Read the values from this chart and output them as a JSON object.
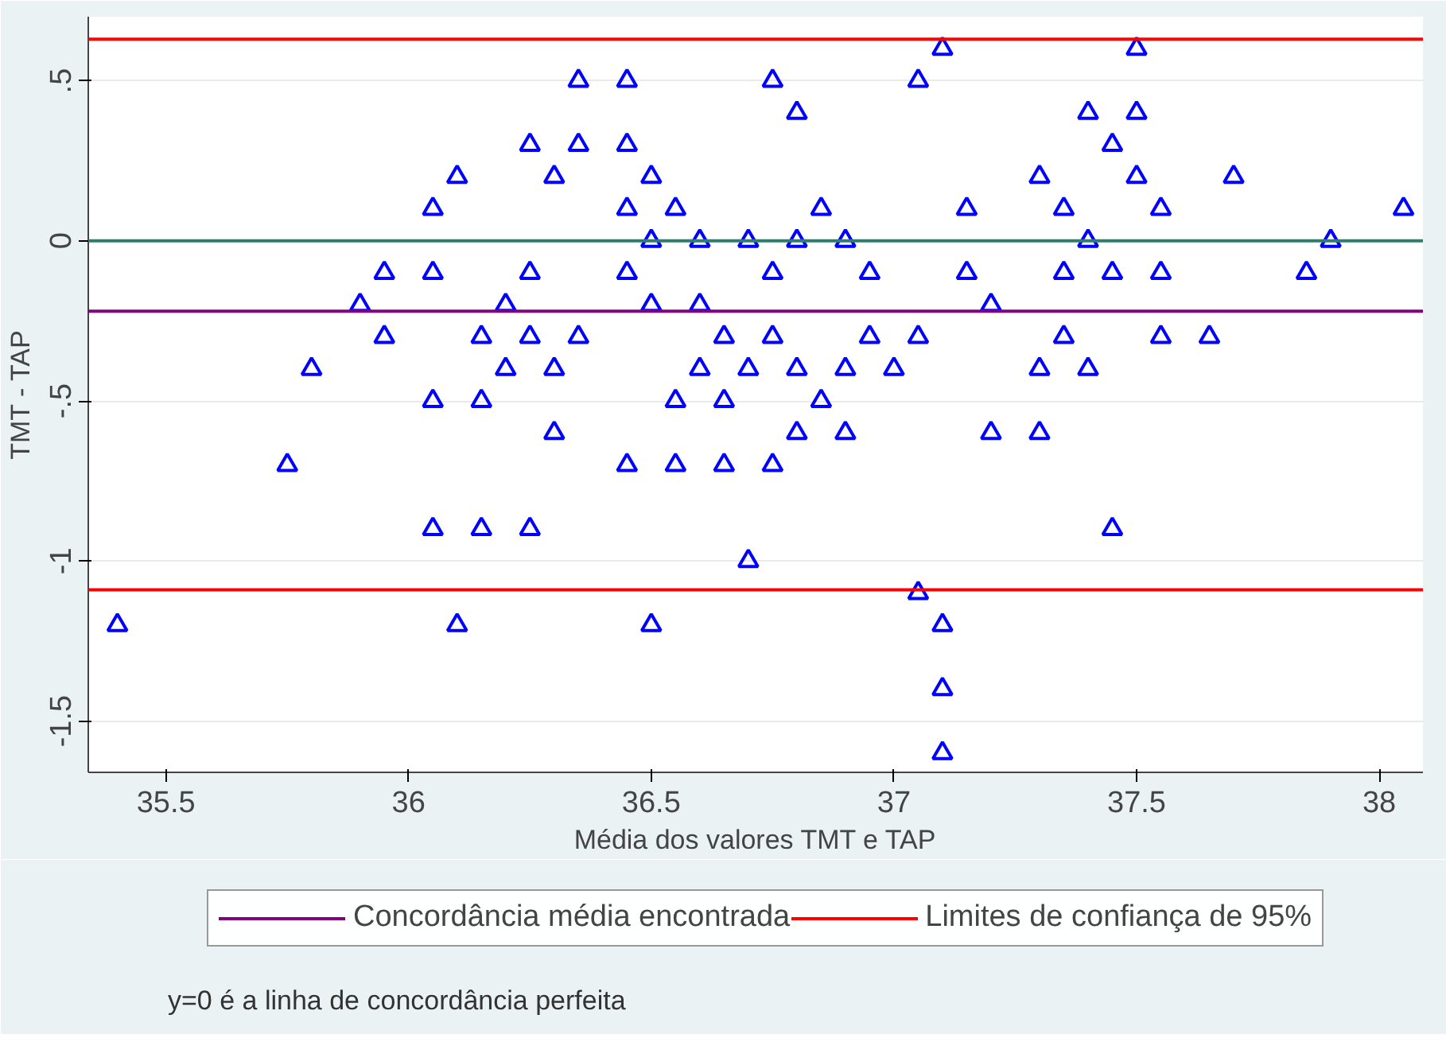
{
  "chart_data": {
    "type": "scatter",
    "xlabel": "Média dos valores TMT e TAP",
    "ylabel": "TMT - TAP",
    "series": [
      {
        "color": "#0000ff",
        "x": [
          37.1,
          37.5,
          36.35,
          36.45,
          36.75,
          37.05,
          36.8,
          37.4,
          37.5,
          36.25,
          36.35,
          36.45,
          37.45,
          36.1,
          36.3,
          36.5,
          37.3,
          37.5,
          37.7,
          36.05,
          36.45,
          36.55,
          36.85,
          37.15,
          37.35,
          37.55,
          38.05,
          36.5,
          36.6,
          36.7,
          36.8,
          36.9,
          37.4,
          37.9,
          35.95,
          36.05,
          36.25,
          36.45,
          36.75,
          36.95,
          37.15,
          37.35,
          37.45,
          37.55,
          37.85,
          35.9,
          36.2,
          36.5,
          36.6,
          37.2,
          35.95,
          36.15,
          36.25,
          36.35,
          36.65,
          36.75,
          36.95,
          37.05,
          37.35,
          37.55,
          37.65,
          35.8,
          36.2,
          36.3,
          36.6,
          36.7,
          36.8,
          36.9,
          37.0,
          37.3,
          37.4,
          36.05,
          36.15,
          36.55,
          36.65,
          36.85,
          36.3,
          36.8,
          36.9,
          37.2,
          37.3,
          35.75,
          36.45,
          36.55,
          36.65,
          36.75,
          36.05,
          36.15,
          36.25,
          37.45,
          36.7,
          37.05,
          35.4,
          36.1,
          36.5,
          37.1,
          37.1,
          37.1
        ],
        "values": [
          0.6,
          0.6,
          0.5,
          0.5,
          0.5,
          0.5,
          0.4,
          0.4,
          0.4,
          0.3,
          0.3,
          0.3,
          0.3,
          0.2,
          0.2,
          0.2,
          0.2,
          0.2,
          0.2,
          0.1,
          0.1,
          0.1,
          0.1,
          0.1,
          0.1,
          0.1,
          0.1,
          0,
          0,
          0,
          0,
          0,
          0,
          0,
          -0.1,
          -0.1,
          -0.1,
          -0.1,
          -0.1,
          -0.1,
          -0.1,
          -0.1,
          -0.1,
          -0.1,
          -0.1,
          -0.2,
          -0.2,
          -0.2,
          -0.2,
          -0.2,
          -0.3,
          -0.3,
          -0.3,
          -0.3,
          -0.3,
          -0.3,
          -0.3,
          -0.3,
          -0.3,
          -0.3,
          -0.3,
          -0.4,
          -0.4,
          -0.4,
          -0.4,
          -0.4,
          -0.4,
          -0.4,
          -0.4,
          -0.4,
          -0.4,
          -0.5,
          -0.5,
          -0.5,
          -0.5,
          -0.5,
          -0.6,
          -0.6,
          -0.6,
          -0.6,
          -0.6,
          -0.7,
          -0.7,
          -0.7,
          -0.7,
          -0.7,
          -0.9,
          -0.9,
          -0.9,
          -0.9,
          -1.0,
          -1.1,
          -1.2,
          -1.2,
          -1.2,
          -1.2,
          -1.4,
          -1.6
        ]
      }
    ],
    "marker": "triangle",
    "xlim": [
      35.34,
      38.09
    ],
    "ylim": [
      -1.66,
      0.7
    ],
    "xticks": [
      35.5,
      36,
      36.5,
      37,
      37.5,
      38
    ],
    "yticks": [
      {
        "value": -1.5,
        "label": "-1.5"
      },
      {
        "value": -1,
        "label": "-1"
      },
      {
        "value": -0.5,
        "label": "-.5"
      },
      {
        "value": 0,
        "label": "0"
      },
      {
        "value": 0.5,
        "label": ".5"
      }
    ],
    "grid": "y",
    "ref_lines": [
      {
        "axis": "y",
        "value": 0,
        "label": null,
        "color": "#2e7d6e"
      },
      {
        "axis": "y",
        "value": -0.22,
        "label": "Concordância média encontrada",
        "color": "#800080"
      },
      {
        "axis": "y",
        "value": 0.63,
        "label": "Limites de confiança de 95%",
        "color": "#ff0000"
      },
      {
        "axis": "y",
        "value": -1.09,
        "label": null,
        "color": "#ff0000"
      }
    ],
    "legend": "bottom",
    "annotations": [
      "y=0 é a linha de concordância perfeita"
    ]
  }
}
